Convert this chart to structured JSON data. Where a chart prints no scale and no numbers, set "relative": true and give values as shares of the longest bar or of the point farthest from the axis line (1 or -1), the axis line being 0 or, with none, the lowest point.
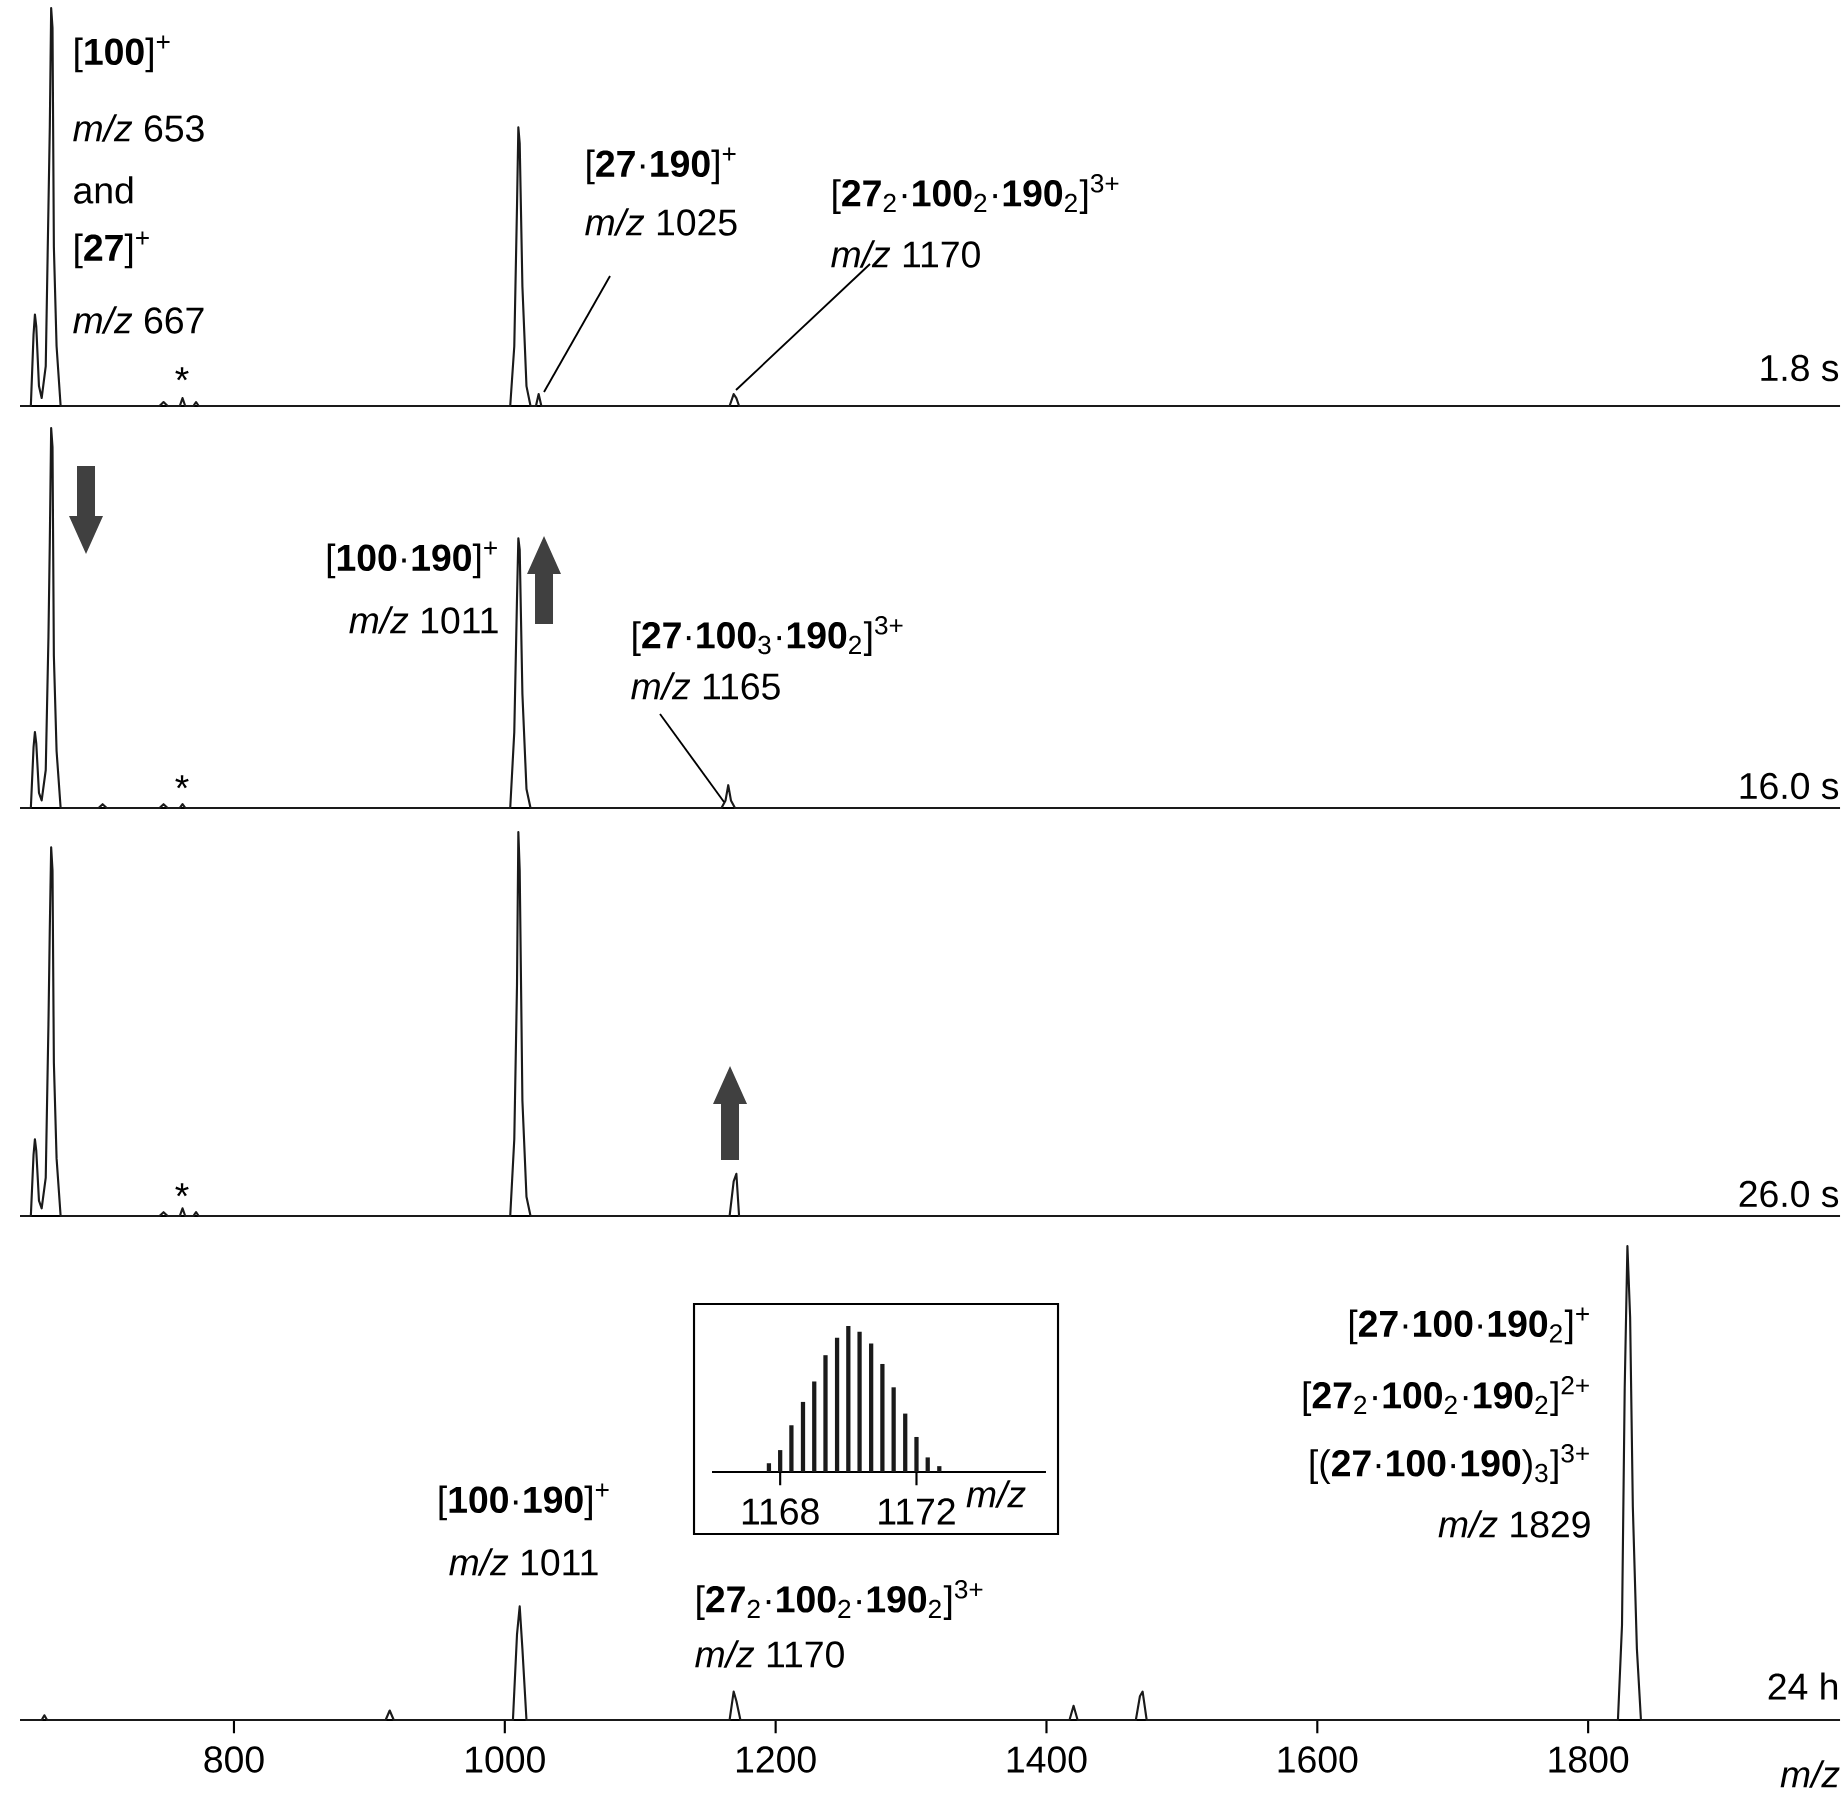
{
  "chart_data": [
    {
      "type": "line",
      "relative": true,
      "tick_labels": false,
      "xlim": [
        642,
        1986
      ],
      "series": [
        {
          "color": "#1a1a1a",
          "x": [
            642,
            650,
            652,
            653,
            654,
            656,
            658,
            661,
            663,
            664,
            665,
            666,
            667,
            669,
            672,
            745,
            748,
            751,
            760,
            762,
            764,
            770,
            772,
            774,
            1004,
            1007,
            1009,
            1010,
            1011,
            1013,
            1016,
            1019,
            1023,
            1025,
            1027,
            1166,
            1169,
            1171,
            1173,
            1986
          ],
          "values": [
            0,
            0,
            0.18,
            0.23,
            0.2,
            0.05,
            0.02,
            0.1,
            0.5,
            0.7,
            1.0,
            0.95,
            0.4,
            0.15,
            0,
            0,
            0.01,
            0,
            0,
            0.02,
            0,
            0,
            0.01,
            0,
            0,
            0.15,
            0.5,
            0.7,
            0.66,
            0.3,
            0.05,
            0,
            0,
            0.03,
            0,
            0,
            0.03,
            0.02,
            0,
            0
          ]
        }
      ],
      "annotations": [
        "[**100**]$^{+}$",
        "*m/z* 653",
        "and",
        "[**27**]$^{+}$",
        "*m/z* 667",
        "[**27**·**190**]$^{+}$",
        "*m/z* 1025",
        "[**27**$_{2}$·**100**$_{2}$·**190**$_{2}$]$^{3+}$",
        "*m/z* 1170",
        "*",
        "1.8 s"
      ]
    },
    {
      "type": "line",
      "relative": true,
      "tick_labels": false,
      "xlim": [
        642,
        1986
      ],
      "series": [
        {
          "color": "#1a1a1a",
          "x": [
            642,
            650,
            652,
            653,
            654,
            656,
            658,
            661,
            663,
            664,
            665,
            666,
            667,
            669,
            672,
            700,
            703,
            706,
            745,
            748,
            751,
            760,
            762,
            764,
            1004,
            1007,
            1009,
            1010,
            1011,
            1013,
            1016,
            1019,
            1160,
            1163,
            1165,
            1167,
            1170,
            1986
          ],
          "values": [
            0,
            0,
            0.16,
            0.2,
            0.17,
            0.04,
            0.02,
            0.1,
            0.45,
            0.7,
            1.0,
            0.95,
            0.4,
            0.15,
            0,
            0,
            0.01,
            0,
            0,
            0.01,
            0,
            0,
            0.01,
            0,
            0,
            0.2,
            0.55,
            0.71,
            0.68,
            0.3,
            0.05,
            0,
            0,
            0.02,
            0.06,
            0.02,
            0,
            0
          ]
        }
      ],
      "annotations": [
        "[**100**·**190**]$^{+}$",
        "*m/z* 1011",
        "[**27**·**100**$_{3}$·**190**$_{2}$]$^{3+}$",
        "*m/z* 1165",
        "*",
        "16.0 s"
      ]
    },
    {
      "type": "line",
      "relative": true,
      "tick_labels": false,
      "xlim": [
        642,
        1986
      ],
      "series": [
        {
          "color": "#1a1a1a",
          "x": [
            642,
            650,
            652,
            653,
            654,
            656,
            658,
            661,
            663,
            664,
            665,
            666,
            667,
            669,
            672,
            745,
            748,
            751,
            760,
            762,
            764,
            770,
            772,
            774,
            1004,
            1007,
            1009,
            1010,
            1011,
            1013,
            1016,
            1019,
            1166,
            1169,
            1171,
            1173,
            1986
          ],
          "values": [
            0,
            0,
            0.16,
            0.2,
            0.17,
            0.04,
            0.02,
            0.1,
            0.5,
            0.75,
            0.96,
            0.9,
            0.4,
            0.15,
            0,
            0,
            0.01,
            0,
            0,
            0.02,
            0,
            0,
            0.01,
            0,
            0,
            0.2,
            0.6,
            1.0,
            0.9,
            0.3,
            0.05,
            0,
            0,
            0.09,
            0.11,
            0,
            0
          ]
        }
      ],
      "annotations": [
        "*",
        "26.0 s"
      ]
    },
    {
      "type": "line",
      "relative": true,
      "tick_labels": "x",
      "xlim": [
        642,
        1986
      ],
      "xlabel": "m/z",
      "xticks": [
        800,
        1000,
        1200,
        1400,
        1600,
        1800
      ],
      "series": [
        {
          "color": "#1a1a1a",
          "x": [
            642,
            658,
            660,
            662,
            912,
            915,
            918,
            1006,
            1009,
            1011,
            1013,
            1016,
            1166,
            1169,
            1171,
            1174,
            1417,
            1420,
            1423,
            1466,
            1469,
            1471,
            1474,
            1822,
            1825,
            1827,
            1829,
            1831,
            1833,
            1836,
            1839,
            1986
          ],
          "values": [
            0,
            0,
            0.01,
            0,
            0,
            0.02,
            0,
            0,
            0.18,
            0.24,
            0.15,
            0,
            0,
            0.06,
            0.04,
            0,
            0,
            0.03,
            0,
            0,
            0.05,
            0.06,
            0,
            0,
            0.2,
            0.7,
            1.0,
            0.85,
            0.45,
            0.15,
            0,
            0
          ]
        }
      ],
      "annotations": [
        "[**100**·**190**]$^{+}$",
        "*m/z* 1011",
        "[**27**$_{2}$·**100**$_{2}$·**190**$_{2}$]$^{3+}$",
        "*m/z* 1170",
        "[**27**·**100**·**190**$_{2}$]$^{+}$",
        "[**27**$_{2}$·**100**$_{2}$·**190**$_{2}$]$^{2+}$",
        "[(**27**·**100**·**190**)$_{3}$]$^{3+}$",
        "*m/z* 1829",
        "24 h"
      ]
    },
    {
      "type": "bar",
      "relative": true,
      "tick_labels": "x",
      "xlim": [
        1166,
        1175.8
      ],
      "xlabel": "m/z",
      "xticks": [
        1168,
        1172
      ],
      "series": [
        {
          "color": "#1a1a1a",
          "x": [
            1167.67,
            1168.0,
            1168.33,
            1168.67,
            1169.0,
            1169.33,
            1169.67,
            1170.0,
            1170.33,
            1170.67,
            1171.0,
            1171.33,
            1171.67,
            1172.0,
            1172.33,
            1172.67
          ],
          "values": [
            0.06,
            0.15,
            0.32,
            0.48,
            0.62,
            0.8,
            0.92,
            1.0,
            0.96,
            0.88,
            0.74,
            0.58,
            0.4,
            0.24,
            0.1,
            0.04
          ]
        }
      ]
    }
  ]
}
